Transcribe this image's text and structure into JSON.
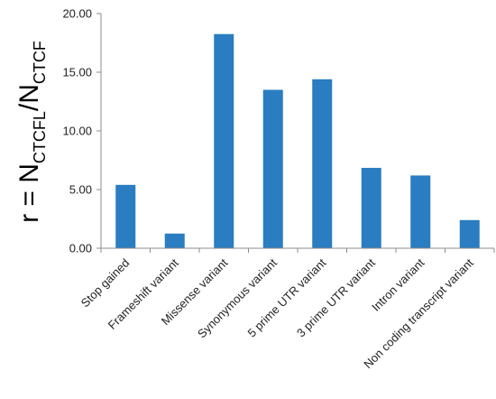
{
  "chart_data": {
    "type": "bar",
    "categories": [
      "Stop gained",
      "Frameshift variant",
      "Missense variant",
      "Synonymous variant",
      "5 prime UTR variant",
      "3 prime UTR variant",
      "Intron variant",
      "Non coding transcript variant"
    ],
    "values": [
      5.4,
      1.25,
      18.25,
      13.5,
      14.4,
      6.85,
      6.2,
      2.4
    ],
    "title": "",
    "xlabel": "",
    "ylabel": {
      "prefix": "r = N",
      "sub1": "CTCFL",
      "mid": "/N",
      "sub2": "CTCF"
    },
    "ylim": [
      0,
      20
    ],
    "yticks": [
      0,
      5,
      10,
      15,
      20
    ],
    "ytick_labels": [
      "0.00",
      "5.00",
      "10.00",
      "15.00",
      "20.00"
    ],
    "bar_color": "#2A7DC0",
    "grid": false,
    "legend": "none"
  }
}
